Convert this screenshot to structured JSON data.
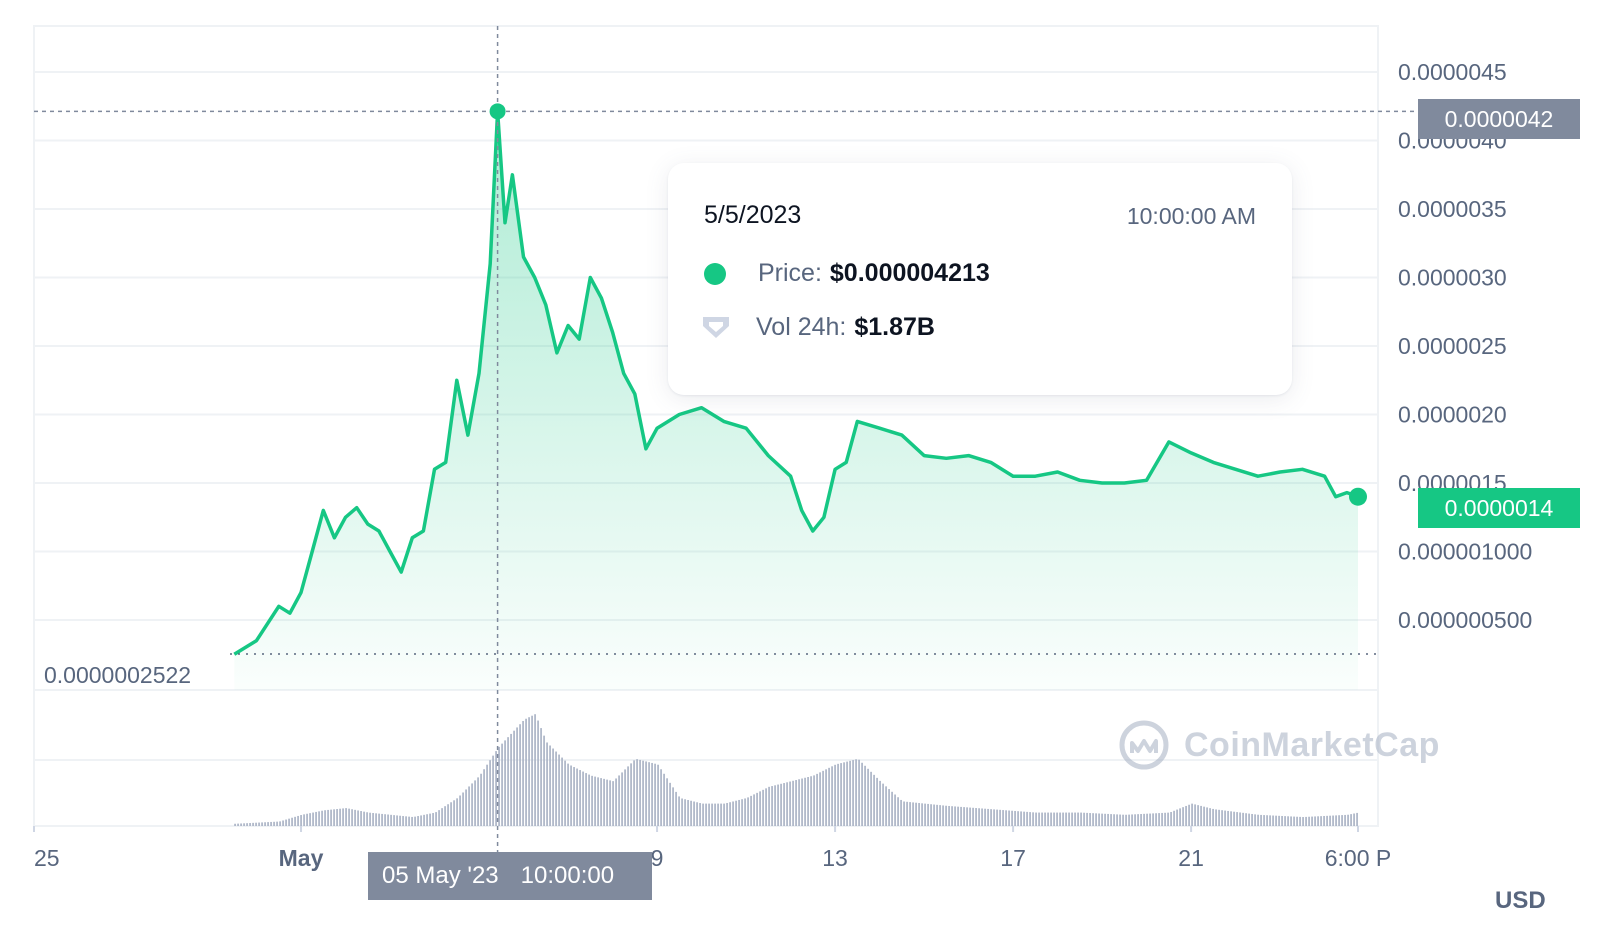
{
  "chart_data": {
    "type": "area",
    "x_start": "2023-04-25",
    "x_end": "2023-05-24 18:00",
    "y_axis_ticks": [
      "0.0000045",
      "0.0000040",
      "0.0000035",
      "0.0000030",
      "0.0000025",
      "0.0000020",
      "0.0000015",
      "0.000001000",
      "0.000000500"
    ],
    "y_tick_values": [
      4.5e-06,
      4e-06,
      3.5e-06,
      3e-06,
      2.5e-06,
      2e-06,
      1.5e-06,
      1e-06,
      5e-07
    ],
    "ylim": [
      2e-07,
      4.8e-06
    ],
    "x_ticks": [
      {
        "label": "25",
        "date": "2023-04-25"
      },
      {
        "label": "May",
        "date": "2023-05-01"
      },
      {
        "label": "9",
        "date": "2023-05-09"
      },
      {
        "label": "13",
        "date": "2023-05-13"
      },
      {
        "label": "17",
        "date": "2023-05-17"
      },
      {
        "label": "21",
        "date": "2023-05-21"
      },
      {
        "label": "6:00 P",
        "date": "2023-05-24T18:00"
      }
    ],
    "price_series": {
      "name": "Price",
      "points": [
        [
          "2023-04-29T12:00",
          2.5e-07
        ],
        [
          "2023-04-30T00:00",
          3.5e-07
        ],
        [
          "2023-04-30T12:00",
          6e-07
        ],
        [
          "2023-04-30T18:00",
          5.5e-07
        ],
        [
          "2023-05-01T00:00",
          7e-07
        ],
        [
          "2023-05-01T06:00",
          1e-06
        ],
        [
          "2023-05-01T12:00",
          1.3e-06
        ],
        [
          "2023-05-01T18:00",
          1.1e-06
        ],
        [
          "2023-05-02T00:00",
          1.25e-06
        ],
        [
          "2023-05-02T06:00",
          1.32e-06
        ],
        [
          "2023-05-02T12:00",
          1.2e-06
        ],
        [
          "2023-05-02T18:00",
          1.15e-06
        ],
        [
          "2023-05-03T00:00",
          1e-06
        ],
        [
          "2023-05-03T06:00",
          8.5e-07
        ],
        [
          "2023-05-03T12:00",
          1.1e-06
        ],
        [
          "2023-05-03T18:00",
          1.15e-06
        ],
        [
          "2023-05-04T00:00",
          1.6e-06
        ],
        [
          "2023-05-04T06:00",
          1.65e-06
        ],
        [
          "2023-05-04T12:00",
          2.25e-06
        ],
        [
          "2023-05-04T18:00",
          1.85e-06
        ],
        [
          "2023-05-05T00:00",
          2.3e-06
        ],
        [
          "2023-05-05T06:00",
          3.1e-06
        ],
        [
          "2023-05-05T10:00",
          4.213e-06
        ],
        [
          "2023-05-05T14:00",
          3.4e-06
        ],
        [
          "2023-05-05T18:00",
          3.75e-06
        ],
        [
          "2023-05-06T00:00",
          3.15e-06
        ],
        [
          "2023-05-06T06:00",
          3e-06
        ],
        [
          "2023-05-06T12:00",
          2.8e-06
        ],
        [
          "2023-05-06T18:00",
          2.45e-06
        ],
        [
          "2023-05-07T00:00",
          2.65e-06
        ],
        [
          "2023-05-07T06:00",
          2.55e-06
        ],
        [
          "2023-05-07T12:00",
          3e-06
        ],
        [
          "2023-05-07T18:00",
          2.85e-06
        ],
        [
          "2023-05-08T00:00",
          2.6e-06
        ],
        [
          "2023-05-08T06:00",
          2.3e-06
        ],
        [
          "2023-05-08T12:00",
          2.15e-06
        ],
        [
          "2023-05-08T18:00",
          1.75e-06
        ],
        [
          "2023-05-09T00:00",
          1.9e-06
        ],
        [
          "2023-05-09T12:00",
          2e-06
        ],
        [
          "2023-05-10T00:00",
          2.05e-06
        ],
        [
          "2023-05-10T12:00",
          1.95e-06
        ],
        [
          "2023-05-11T00:00",
          1.9e-06
        ],
        [
          "2023-05-11T12:00",
          1.7e-06
        ],
        [
          "2023-05-12T00:00",
          1.55e-06
        ],
        [
          "2023-05-12T06:00",
          1.3e-06
        ],
        [
          "2023-05-12T12:00",
          1.15e-06
        ],
        [
          "2023-05-12T18:00",
          1.25e-06
        ],
        [
          "2023-05-13T00:00",
          1.6e-06
        ],
        [
          "2023-05-13T06:00",
          1.65e-06
        ],
        [
          "2023-05-13T12:00",
          1.95e-06
        ],
        [
          "2023-05-14T00:00",
          1.9e-06
        ],
        [
          "2023-05-14T12:00",
          1.85e-06
        ],
        [
          "2023-05-15T00:00",
          1.7e-06
        ],
        [
          "2023-05-15T12:00",
          1.68e-06
        ],
        [
          "2023-05-16T00:00",
          1.7e-06
        ],
        [
          "2023-05-16T12:00",
          1.65e-06
        ],
        [
          "2023-05-17T00:00",
          1.55e-06
        ],
        [
          "2023-05-17T12:00",
          1.55e-06
        ],
        [
          "2023-05-18T00:00",
          1.58e-06
        ],
        [
          "2023-05-18T12:00",
          1.52e-06
        ],
        [
          "2023-05-19T00:00",
          1.5e-06
        ],
        [
          "2023-05-19T12:00",
          1.5e-06
        ],
        [
          "2023-05-20T00:00",
          1.52e-06
        ],
        [
          "2023-05-20T12:00",
          1.8e-06
        ],
        [
          "2023-05-21T00:00",
          1.72e-06
        ],
        [
          "2023-05-21T12:00",
          1.65e-06
        ],
        [
          "2023-05-22T00:00",
          1.6e-06
        ],
        [
          "2023-05-22T12:00",
          1.55e-06
        ],
        [
          "2023-05-23T00:00",
          1.58e-06
        ],
        [
          "2023-05-23T12:00",
          1.6e-06
        ],
        [
          "2023-05-24T00:00",
          1.55e-06
        ],
        [
          "2023-05-24T06:00",
          1.4e-06
        ],
        [
          "2023-05-24T12:00",
          1.43e-06
        ],
        [
          "2023-05-24T18:00",
          1.4e-06
        ]
      ]
    },
    "volume_series": {
      "name": "Vol 24h",
      "points": [
        [
          "2023-04-29T12:00",
          0.02
        ],
        [
          "2023-04-30T12:00",
          0.04
        ],
        [
          "2023-05-01T00:00",
          0.1
        ],
        [
          "2023-05-01T12:00",
          0.14
        ],
        [
          "2023-05-02T00:00",
          0.16
        ],
        [
          "2023-05-02T12:00",
          0.12
        ],
        [
          "2023-05-03T00:00",
          0.1
        ],
        [
          "2023-05-03T12:00",
          0.08
        ],
        [
          "2023-05-04T00:00",
          0.12
        ],
        [
          "2023-05-04T12:00",
          0.25
        ],
        [
          "2023-05-05T00:00",
          0.45
        ],
        [
          "2023-05-05T10:00",
          0.7
        ],
        [
          "2023-05-06T00:00",
          0.95
        ],
        [
          "2023-05-06T06:00",
          1.0
        ],
        [
          "2023-05-06T12:00",
          0.75
        ],
        [
          "2023-05-07T00:00",
          0.55
        ],
        [
          "2023-05-07T12:00",
          0.45
        ],
        [
          "2023-05-08T00:00",
          0.4
        ],
        [
          "2023-05-08T12:00",
          0.6
        ],
        [
          "2023-05-09T00:00",
          0.55
        ],
        [
          "2023-05-09T12:00",
          0.25
        ],
        [
          "2023-05-10T00:00",
          0.2
        ],
        [
          "2023-05-10T12:00",
          0.2
        ],
        [
          "2023-05-11T00:00",
          0.25
        ],
        [
          "2023-05-11T12:00",
          0.35
        ],
        [
          "2023-05-12T00:00",
          0.4
        ],
        [
          "2023-05-12T12:00",
          0.45
        ],
        [
          "2023-05-13T00:00",
          0.55
        ],
        [
          "2023-05-13T12:00",
          0.6
        ],
        [
          "2023-05-14T00:00",
          0.4
        ],
        [
          "2023-05-14T12:00",
          0.22
        ],
        [
          "2023-05-15T12:00",
          0.18
        ],
        [
          "2023-05-16T12:00",
          0.15
        ],
        [
          "2023-05-17T12:00",
          0.12
        ],
        [
          "2023-05-18T12:00",
          0.12
        ],
        [
          "2023-05-19T12:00",
          0.1
        ],
        [
          "2023-05-20T12:00",
          0.12
        ],
        [
          "2023-05-21T00:00",
          0.2
        ],
        [
          "2023-05-21T12:00",
          0.15
        ],
        [
          "2023-05-22T12:00",
          0.1
        ],
        [
          "2023-05-23T12:00",
          0.08
        ],
        [
          "2023-05-24T12:00",
          0.1
        ],
        [
          "2023-05-24T18:00",
          0.12
        ]
      ]
    },
    "hover": {
      "date": "2023-05-05T10:00",
      "price": 4.213e-06
    },
    "low_value": 2.522e-07,
    "last_value": 1.4e-06,
    "peak_value": 4.2e-06,
    "grid": true,
    "line_color": "#16c784",
    "volume_color": "#a6b0c3"
  },
  "tooltip": {
    "date": "5/5/2023",
    "time": "10:00:00 AM",
    "price_label": "Price:",
    "price_value": "$0.000004213",
    "vol_label": "Vol 24h:",
    "vol_value": "$1.87B"
  },
  "crosshair": {
    "x_date": "05 May '23",
    "x_time": "10:00:00",
    "y_value": "0.0000042"
  },
  "last_price_label": "0.0000014",
  "low_price_label": "0.0000002522",
  "currency_label": "USD",
  "watermark": "CoinMarketCap",
  "colors": {
    "accent": "#16c784",
    "axis_text": "#58667e",
    "crosshair_badge": "#808a9d"
  }
}
